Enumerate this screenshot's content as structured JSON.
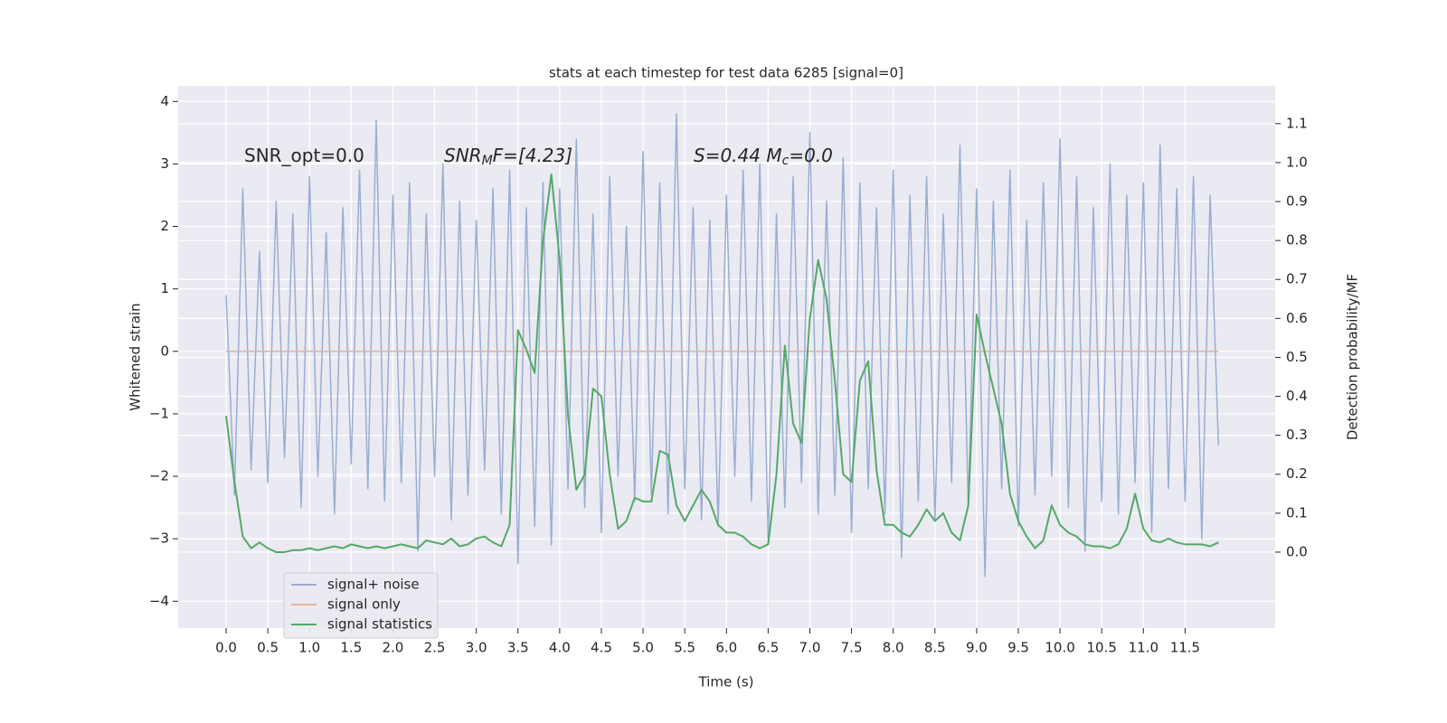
{
  "chart_data": {
    "type": "line",
    "title": "stats at each timestep for test data 6285 [signal=0]",
    "xlabel": "Time (s)",
    "ylabel": "Whitened strain",
    "y2label": "Detection probability/MF",
    "annotations": [
      [
        "SNR_opt=0.0"
      ],
      [
        "SNR",
        "M",
        "F=[4.23]"
      ],
      [
        "S=0.44  M",
        "c",
        "=0.0"
      ]
    ],
    "xlim": [
      -0.575,
      12.58
    ],
    "ylim": [
      -4.43,
      4.25
    ],
    "y2lim": [
      -0.195,
      1.197
    ],
    "xticks": [
      {
        "value": 0,
        "label": "0.0"
      },
      0.5,
      {
        "value": 1,
        "label": "1.0"
      },
      1.5,
      {
        "value": 2,
        "label": "2.0"
      },
      2.5,
      {
        "value": 3,
        "label": "3.0"
      },
      3.5,
      {
        "value": 4,
        "label": "4.0"
      },
      4.5,
      {
        "value": 5,
        "label": "5.0"
      },
      5.5,
      {
        "value": 6,
        "label": "6.0"
      },
      6.5,
      {
        "value": 7,
        "label": "7.0"
      },
      7.5,
      {
        "value": 8,
        "label": "8.0"
      },
      8.5,
      {
        "value": 9,
        "label": "9.0"
      },
      9.5,
      {
        "value": 10,
        "label": "10.0"
      },
      10.5,
      {
        "value": 11,
        "label": "11.0"
      },
      11.5
    ],
    "yticks": [
      {
        "value": -4,
        "label": "−4"
      },
      {
        "value": -3,
        "label": "−3"
      },
      {
        "value": -2,
        "label": "−2"
      },
      {
        "value": -1,
        "label": "−1"
      },
      0,
      1,
      2,
      3,
      4
    ],
    "y2ticks": [
      {
        "value": 0,
        "label": "0.0"
      },
      0.1,
      0.2,
      0.3,
      0.4,
      0.5,
      0.6,
      0.7,
      0.8,
      0.9,
      {
        "value": 1,
        "label": "1.0"
      },
      1.1
    ],
    "grid": true,
    "legend": "lower left",
    "x": [
      0,
      0.1,
      0.2,
      0.3,
      0.4,
      0.5,
      0.6,
      0.7,
      0.8,
      0.9,
      1,
      1.1,
      1.2,
      1.3,
      1.4,
      1.5,
      1.6,
      1.7,
      1.8,
      1.9,
      2,
      2.1,
      2.2,
      2.3,
      2.4,
      2.5,
      2.6,
      2.7,
      2.8,
      2.9,
      3,
      3.1,
      3.2,
      3.3,
      3.4,
      3.5,
      3.6,
      3.7,
      3.8,
      3.9,
      4,
      4.1,
      4.2,
      4.3,
      4.4,
      4.5,
      4.6,
      4.7,
      4.8,
      4.9,
      5,
      5.1,
      5.2,
      5.3,
      5.4,
      5.5,
      5.6,
      5.7,
      5.8,
      5.9,
      6,
      6.1,
      6.2,
      6.3,
      6.4,
      6.5,
      6.6,
      6.7,
      6.8,
      6.9,
      7,
      7.1,
      7.2,
      7.3,
      7.4,
      7.5,
      7.6,
      7.7,
      7.8,
      7.9,
      8,
      8.1,
      8.2,
      8.3,
      8.4,
      8.5,
      8.6,
      8.7,
      8.8,
      8.9,
      9,
      9.1,
      9.2,
      9.3,
      9.4,
      9.5,
      9.6,
      9.7,
      9.8,
      9.9,
      10,
      10.1,
      10.2,
      10.3,
      10.4,
      10.5,
      10.6,
      10.7,
      10.8,
      10.9,
      11,
      11.1,
      11.2,
      11.3,
      11.4,
      11.5,
      11.6,
      11.7,
      11.8,
      11.9
    ],
    "series": [
      {
        "name": "signal+ noise",
        "color": "#9aaed2",
        "values": [
          0.9,
          -2.3,
          2.6,
          -1.9,
          1.6,
          -2.1,
          2.4,
          -1.7,
          2.2,
          -2.5,
          2.8,
          -2.0,
          1.9,
          -2.6,
          2.3,
          -1.8,
          2.9,
          -2.2,
          3.7,
          -2.4,
          2.5,
          -2.1,
          2.7,
          -3.2,
          2.2,
          -2.0,
          3.0,
          -2.7,
          2.4,
          -2.3,
          2.1,
          -1.9,
          2.6,
          -2.6,
          2.9,
          -3.4,
          2.3,
          -2.8,
          2.7,
          -3.1,
          2.6,
          -2.2,
          3.4,
          -2.5,
          2.2,
          -2.9,
          2.8,
          -2.0,
          2.0,
          -2.4,
          3.2,
          -2.3,
          2.7,
          -2.6,
          3.8,
          -2.2,
          2.3,
          -2.7,
          2.1,
          -2.8,
          2.5,
          -2.0,
          2.9,
          -2.4,
          3.0,
          -3.0,
          2.2,
          -2.5,
          2.8,
          -2.1,
          3.5,
          -2.6,
          2.4,
          -2.3,
          3.1,
          -2.9,
          2.7,
          -2.2,
          2.3,
          -2.6,
          2.9,
          -3.3,
          2.5,
          -2.4,
          2.8,
          -2.7,
          2.2,
          -2.1,
          3.3,
          -2.5,
          2.6,
          -3.6,
          2.4,
          -2.2,
          2.9,
          -2.8,
          2.1,
          -2.3,
          2.7,
          -2.0,
          3.4,
          -2.5,
          2.8,
          -3.2,
          2.3,
          -2.4,
          3.0,
          -2.6,
          2.5,
          -2.1,
          2.7,
          -2.9,
          3.3,
          -2.2,
          2.6,
          -2.4,
          2.8,
          -3.0,
          2.5,
          -1.5
        ]
      },
      {
        "name": "signal only",
        "color": "#e3b39a",
        "values": [
          0,
          0,
          0,
          0,
          0,
          0,
          0,
          0,
          0,
          0,
          0,
          0,
          0,
          0,
          0,
          0,
          0,
          0,
          0,
          0,
          0,
          0,
          0,
          0,
          0,
          0,
          0,
          0,
          0,
          0,
          0,
          0,
          0,
          0,
          0,
          0,
          0,
          0,
          0,
          0,
          0,
          0,
          0,
          0,
          0,
          0,
          0,
          0,
          0,
          0,
          0,
          0,
          0,
          0,
          0,
          0,
          0,
          0,
          0,
          0,
          0,
          0,
          0,
          0,
          0,
          0,
          0,
          0,
          0,
          0,
          0,
          0,
          0,
          0,
          0,
          0,
          0,
          0,
          0,
          0,
          0,
          0,
          0,
          0,
          0,
          0,
          0,
          0,
          0,
          0,
          0,
          0,
          0,
          0,
          0,
          0,
          0,
          0,
          0,
          0,
          0,
          0,
          0,
          0,
          0,
          0,
          0,
          0,
          0,
          0,
          0,
          0,
          0,
          0,
          0,
          0,
          0,
          0,
          0,
          0
        ]
      },
      {
        "name": "signal statistics",
        "color": "#55a868",
        "axis": "y2",
        "values": [
          0.35,
          0.18,
          0.04,
          0.01,
          0.025,
          0.01,
          0.0,
          0.0,
          0.005,
          0.005,
          0.01,
          0.005,
          0.01,
          0.015,
          0.01,
          0.02,
          0.015,
          0.01,
          0.015,
          0.01,
          0.015,
          0.02,
          0.015,
          0.01,
          0.03,
          0.025,
          0.02,
          0.035,
          0.015,
          0.02,
          0.035,
          0.04,
          0.025,
          0.015,
          0.07,
          0.57,
          0.52,
          0.46,
          0.8,
          0.97,
          0.75,
          0.35,
          0.16,
          0.2,
          0.42,
          0.4,
          0.2,
          0.06,
          0.08,
          0.14,
          0.13,
          0.13,
          0.26,
          0.25,
          0.12,
          0.08,
          0.12,
          0.16,
          0.13,
          0.07,
          0.05,
          0.05,
          0.04,
          0.02,
          0.01,
          0.02,
          0.2,
          0.53,
          0.33,
          0.28,
          0.6,
          0.75,
          0.65,
          0.44,
          0.2,
          0.18,
          0.44,
          0.49,
          0.21,
          0.07,
          0.07,
          0.05,
          0.04,
          0.07,
          0.11,
          0.08,
          0.1,
          0.05,
          0.03,
          0.12,
          0.61,
          0.51,
          0.42,
          0.33,
          0.15,
          0.08,
          0.04,
          0.01,
          0.03,
          0.12,
          0.07,
          0.05,
          0.04,
          0.02,
          0.015,
          0.015,
          0.01,
          0.02,
          0.06,
          0.15,
          0.06,
          0.03,
          0.025,
          0.035,
          0.025,
          0.02,
          0.02,
          0.02,
          0.015,
          0.025
        ]
      }
    ]
  }
}
